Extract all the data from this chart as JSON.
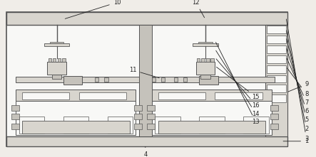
{
  "bg_color": "#f0ede8",
  "line_color": "#555555",
  "fill_light": "#d8d5ce",
  "fill_mid": "#c5c2bb",
  "fill_dark": "#a8a5a0",
  "fill_white": "#f8f8f6",
  "outline_color": "#444444",
  "label_fontsize": 6,
  "label_color": "#222222"
}
